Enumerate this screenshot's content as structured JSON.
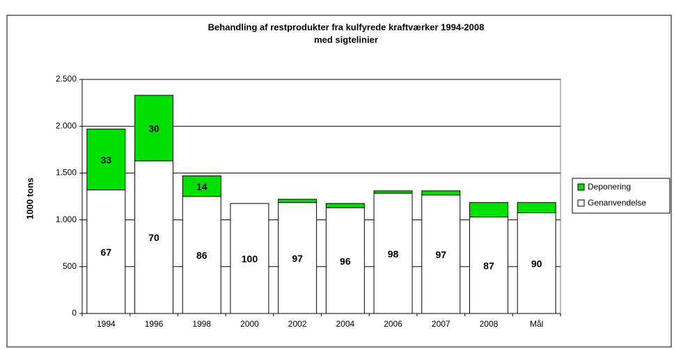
{
  "chart_data": {
    "type": "bar",
    "stacked": true,
    "title": "Behandling af restprodukter fra kulfyrede kraftværker 1994-2008",
    "subtitle": "med sigtelinier",
    "y_label": "1000 tons",
    "categories": [
      "1994",
      "1996",
      "1998",
      "2000",
      "2002",
      "2004",
      "2006",
      "2007",
      "2008",
      "Mål"
    ],
    "series": [
      {
        "name": "Genanvendelse",
        "color": "#ffffff",
        "values": [
          1320,
          1630,
          1250,
          1175,
          1185,
          1130,
          1285,
          1265,
          1030,
          1075
        ],
        "value_labels": [
          "67",
          "70",
          "86",
          "100",
          "97",
          "96",
          "98",
          "97",
          "87",
          "90"
        ]
      },
      {
        "name": "Deponering",
        "color": "#00e000",
        "values": [
          650,
          700,
          220,
          0,
          35,
          45,
          25,
          45,
          155,
          110
        ],
        "value_labels": [
          "33",
          "30",
          "14",
          null,
          null,
          null,
          null,
          null,
          null,
          null
        ]
      }
    ],
    "ylim": [
      0,
      2500
    ],
    "yticks": [
      0,
      500,
      {
        "value": 1000,
        "label": "1.000"
      },
      {
        "value": 1500,
        "label": "1.500"
      },
      {
        "value": 2000,
        "label": "2.000"
      },
      {
        "value": 2500,
        "label": "2.500"
      }
    ],
    "grid": true,
    "legend": "right"
  }
}
